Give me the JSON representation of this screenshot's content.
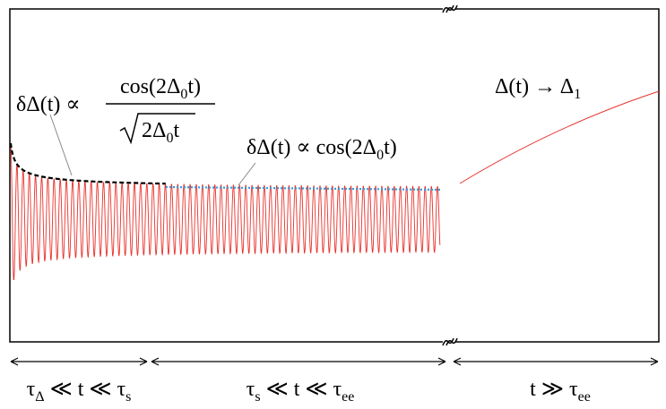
{
  "annotations": {
    "decay": {
      "lhs": [
        "δΔ(t) ∝"
      ],
      "numerator": [
        "cos(2Δ",
        "0",
        "t)"
      ],
      "denominator": [
        "2Δ",
        "0",
        "t"
      ]
    },
    "constant": [
      "δΔ(t) ∝ cos(2Δ",
      "0",
      "t)"
    ],
    "late": [
      "Δ(t) → Δ",
      "1"
    ]
  },
  "regions": [
    [
      "τ",
      "Δ",
      " ≪ t ≪ τ",
      "s"
    ],
    [
      "τ",
      "s",
      " ≪ t ≪ τ",
      "ee"
    ],
    [
      "t ≫ τ",
      "ee"
    ]
  ]
}
